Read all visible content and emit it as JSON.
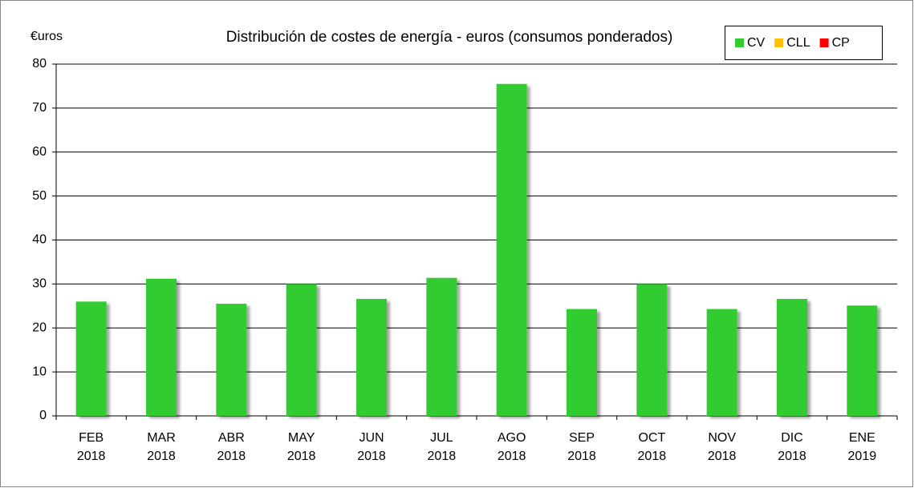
{
  "chart_data": {
    "type": "bar",
    "stacked": true,
    "title": "Distribución de costes de energía - euros (consumos ponderados)",
    "y_label": "€uros",
    "categories": [
      "FEB 2018",
      "MAR 2018",
      "ABR 2018",
      "MAY 2018",
      "JUN 2018",
      "JUL 2018",
      "AGO 2018",
      "SEP 2018",
      "OCT 2018",
      "NOV 2018",
      "DIC 2018",
      "ENE 2019"
    ],
    "series": [
      {
        "name": "CV",
        "color": "#33cc33",
        "values": [
          26,
          31.2,
          25.5,
          30,
          26.6,
          31.4,
          75.5,
          24.3,
          30,
          24.3,
          26.6,
          25.1
        ]
      },
      {
        "name": "CLL",
        "color": "#ffc000",
        "values": [
          0,
          0,
          0,
          0,
          0,
          0,
          0,
          0,
          0,
          0,
          0,
          0
        ]
      },
      {
        "name": "CP",
        "color": "#ff0000",
        "values": [
          0,
          0,
          0,
          0,
          0,
          0,
          0,
          0,
          0,
          0,
          0,
          0
        ]
      }
    ],
    "ylim": [
      0,
      80
    ],
    "yticks": [
      0,
      10,
      20,
      30,
      40,
      50,
      60,
      70,
      80
    ],
    "grid": true,
    "legend": "top-right"
  }
}
